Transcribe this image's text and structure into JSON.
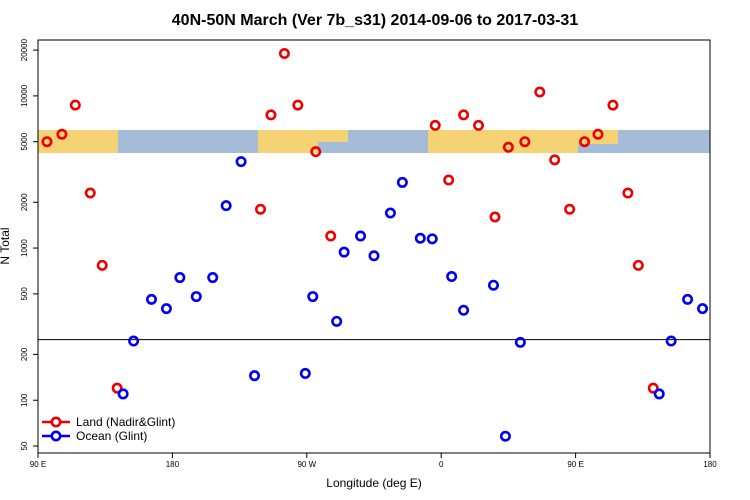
{
  "chart_data": {
    "type": "scatter",
    "title": "40N-50N March (Ver 7b_s31)   2014-09-06 to 2017-03-31",
    "x_label": "Longitude (deg E)",
    "y_label": "N Total",
    "log_y": true,
    "legend": "bottom-left",
    "reference_line": 250,
    "xlim": [
      90,
      540
    ],
    "xticks": [
      {
        "value": 90,
        "label": "90 E"
      },
      180,
      {
        "value": 270,
        "label": "90 W"
      },
      {
        "value": 360,
        "label": "0"
      },
      {
        "value": 450,
        "label": "90 E"
      },
      {
        "value": 540,
        "label": "180"
      }
    ],
    "ylim": [
      45,
      23300
    ],
    "yticks": [
      50,
      100,
      200,
      500,
      1000,
      2000,
      5000,
      10000,
      20000
    ],
    "series": [
      {
        "name": "Land (Nadir&Glint)",
        "color": "#ee0000",
        "x": [
          96,
          106,
          115,
          125,
          133,
          143,
          239,
          246,
          255,
          264,
          276,
          286,
          356,
          365,
          375,
          385,
          396,
          405,
          416,
          426,
          436,
          446,
          456,
          465,
          475,
          485,
          492,
          502
        ],
        "values": [
          5000,
          5600,
          8700,
          2300,
          770,
          120,
          1800,
          7500,
          19000,
          8700,
          4300,
          1200,
          6400,
          2800,
          7500,
          6400,
          1600,
          4600,
          5000,
          10600,
          3800,
          1800,
          5000,
          5600,
          8700,
          2300,
          770,
          120
        ]
      },
      {
        "name": "Ocean (Glint)",
        "color": "#0000ee",
        "x": [
          147,
          154,
          166,
          176,
          185,
          196,
          207,
          216,
          226,
          235,
          269,
          274,
          290,
          295,
          306,
          315,
          326,
          334,
          346,
          354,
          367,
          375,
          395,
          403,
          413,
          506,
          514,
          525,
          535
        ],
        "values": [
          110,
          245,
          460,
          400,
          640,
          480,
          640,
          1900,
          3700,
          145,
          150,
          480,
          330,
          940,
          1200,
          890,
          1700,
          2700,
          1160,
          1150,
          650,
          390,
          570,
          58,
          240,
          110,
          245,
          460,
          400
        ]
      }
    ]
  }
}
